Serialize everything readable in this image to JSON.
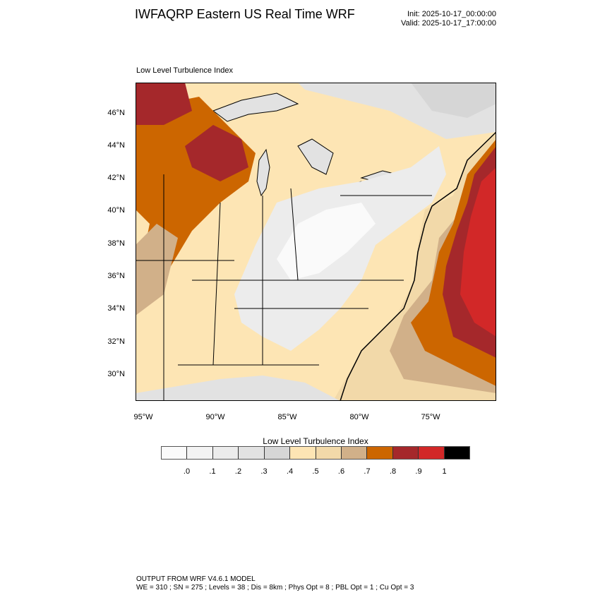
{
  "header": {
    "title": "IWFAQRP Eastern US Real Time WRF",
    "init": "Init: 2025-10-17_00:00:00",
    "valid": "Valid: 2025-10-17_17:00:00"
  },
  "map": {
    "subtitle": "Low Level Turbulence Index",
    "lat_labels": [
      "46°N",
      "44°N",
      "42°N",
      "40°N",
      "38°N",
      "36°N",
      "34°N",
      "32°N",
      "30°N"
    ],
    "lon_labels": [
      "95°W",
      "90°W",
      "85°W",
      "80°W",
      "75°W"
    ]
  },
  "colorbar": {
    "title": "Low Level Turbulence Index",
    "colors": [
      "#fafafa",
      "#f3f3f3",
      "#ececec",
      "#e2e2e2",
      "#d6d6d6",
      "#fde5b4",
      "#f2d9a9",
      "#d1b089",
      "#cc6600",
      "#a5282b",
      "#d22828",
      "#000000"
    ],
    "labels": [
      ".0",
      ".1",
      ".2",
      ".3",
      ".4",
      ".5",
      ".6",
      ".7",
      ".8",
      ".9",
      "1"
    ]
  },
  "footer": {
    "line1": "OUTPUT FROM WRF V4.6.1 MODEL",
    "line2": "WE = 310 ; SN = 275 ; Levels = 38 ; Dis = 8km ; Phys Opt = 8 ; PBL Opt = 1 ; Cu Opt = 3"
  }
}
